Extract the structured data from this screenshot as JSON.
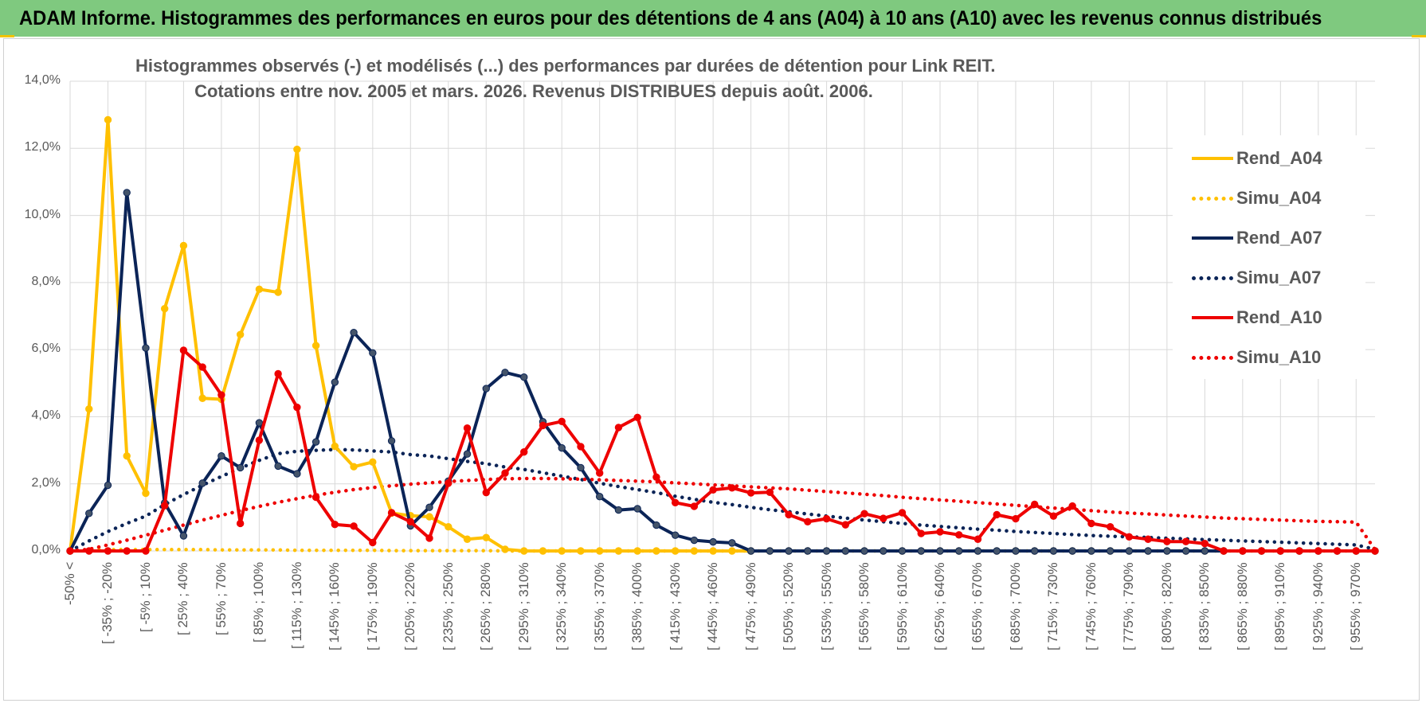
{
  "banner": {
    "title": "ADAM Informe. Histogrammes des performances en euros pour des détentions de 4 ans (A04) à 10 ans (A10) avec les revenus connus distribués"
  },
  "colors": {
    "banner_bg": "#7fc97f",
    "A04": "#ffc000",
    "A07": "#0b2457",
    "A10": "#ee0000",
    "grid": "#d9d9d9",
    "text": "#595959"
  },
  "chart_data": {
    "type": "line",
    "title_line1": "Histogrammes observés (-) et modélisés (...) des performances par durées de détention pour Link REIT.",
    "title_line2": "Cotations entre nov. 2005 et mars. 2026.  Revenus DISTRIBUES depuis août. 2006.",
    "ylim": [
      0,
      0.14
    ],
    "yticks": [
      "0,0%",
      "2,0%",
      "4,0%",
      "6,0%",
      "8,0%",
      "10,0%",
      "12,0%",
      "14,0%"
    ],
    "xtick_labels": [
      "-50% <",
      "[ -35% ; -20%",
      "[ -5% ; 10%",
      "[ 25% ; 40%",
      "[ 55% ; 70%",
      "[ 85% ; 100%",
      "[ 115% ; 130%",
      "[ 145% ; 160%",
      "[ 175% ; 190%",
      "[ 205% ; 220%",
      "[ 235% ; 250%",
      "[ 265% ; 280%",
      "[ 295% ; 310%",
      "[ 325% ; 340%",
      "[ 355% ; 370%",
      "[ 385% ; 400%",
      "[ 415% ; 430%",
      "[ 445% ; 460%",
      "[ 475% ; 490%",
      "[ 505% ; 520%",
      "[ 535% ; 550%",
      "[ 565% ; 580%",
      "[ 595% ; 610%",
      "[ 625% ; 640%",
      "[ 655% ; 670%",
      "[ 685% ; 700%",
      "[ 715% ; 730%",
      "[ 745% ; 760%",
      "[ 775% ; 790%",
      "[ 805% ; 820%",
      "[ 835% ; 850%",
      "[ 865% ; 880%",
      "[ 895% ; 910%",
      "[ 925% ; 940%",
      "[ 955% ; 970%"
    ],
    "n_points": 70,
    "series": [
      {
        "name": "Rend_A04",
        "key": "A04",
        "style": "solid",
        "values": [
          0,
          0.0423,
          0.1285,
          0.0283,
          0.0172,
          0.0722,
          0.091,
          0.0455,
          0.0452,
          0.0645,
          0.078,
          0.0771,
          0.1197,
          0.0612,
          0.0312,
          0.0251,
          0.0265,
          0.0113,
          0.0105,
          0.0102,
          0.0072,
          0.0035,
          0.004,
          0.0005,
          0,
          0,
          0,
          0,
          0,
          0,
          0,
          0,
          0,
          0,
          0,
          0,
          0,
          0,
          0,
          0,
          0,
          0,
          0,
          0,
          0,
          0,
          0,
          0,
          0,
          0,
          0,
          0,
          0,
          0,
          0,
          0,
          0,
          0,
          0,
          0,
          0,
          0,
          0,
          0,
          0,
          0,
          0,
          0,
          0,
          0
        ]
      },
      {
        "name": "Simu_A04",
        "key": "A04",
        "style": "dotted",
        "values": [
          0,
          0.0003,
          0.0004,
          0.0004,
          0.0004,
          0.0004,
          0.0004,
          0.0004,
          0.0003,
          0.0003,
          0.0003,
          0.0003,
          0.0002,
          0.0002,
          0.0002,
          0.0002,
          0.0002,
          0.0001,
          0.0001,
          0.0001,
          0.0001,
          0.0001,
          0.0001,
          0,
          0,
          0,
          0,
          0,
          0,
          0,
          0,
          0,
          0,
          0,
          0,
          0,
          0,
          0,
          0,
          0,
          0,
          0,
          0,
          0,
          0,
          0,
          0,
          0,
          0,
          0,
          0,
          0,
          0,
          0,
          0,
          0,
          0,
          0,
          0,
          0,
          0,
          0,
          0,
          0,
          0,
          0,
          0,
          0,
          0,
          0
        ]
      },
      {
        "name": "Rend_A07",
        "key": "A07",
        "style": "solid",
        "values": [
          0,
          0.0112,
          0.0196,
          0.1068,
          0.0605,
          0.0143,
          0.0045,
          0.0202,
          0.0283,
          0.0248,
          0.0382,
          0.0253,
          0.023,
          0.0325,
          0.0503,
          0.0651,
          0.059,
          0.0328,
          0.0075,
          0.013,
          0.0208,
          0.0289,
          0.0484,
          0.0532,
          0.0518,
          0.0385,
          0.0307,
          0.0248,
          0.0162,
          0.0122,
          0.0126,
          0.0077,
          0.0047,
          0.0032,
          0.0027,
          0.0024,
          0,
          0,
          0,
          0,
          0,
          0,
          0,
          0,
          0,
          0,
          0,
          0,
          0,
          0,
          0,
          0,
          0,
          0,
          0,
          0,
          0,
          0,
          0,
          0,
          0,
          0,
          0,
          0,
          0,
          0,
          0,
          0,
          0,
          0
        ]
      },
      {
        "name": "Simu_A07",
        "key": "A07",
        "style": "dotted",
        "values": [
          0,
          0.003,
          0.0058,
          0.0082,
          0.0104,
          0.0138,
          0.0168,
          0.0196,
          0.0222,
          0.0247,
          0.027,
          0.029,
          0.0297,
          0.03,
          0.0302,
          0.0301,
          0.0298,
          0.0295,
          0.0287,
          0.0283,
          0.0275,
          0.0267,
          0.026,
          0.025,
          0.0243,
          0.0233,
          0.0223,
          0.0213,
          0.0202,
          0.0192,
          0.0183,
          0.0174,
          0.0163,
          0.0154,
          0.0145,
          0.0138,
          0.013,
          0.0123,
          0.0117,
          0.011,
          0.0104,
          0.0098,
          0.0092,
          0.0087,
          0.0082,
          0.0077,
          0.0073,
          0.0069,
          0.0065,
          0.0062,
          0.0058,
          0.0055,
          0.0052,
          0.0049,
          0.0046,
          0.0044,
          0.0042,
          0.004,
          0.0038,
          0.0036,
          0.0034,
          0.0032,
          0.003,
          0.0028,
          0.0026,
          0.0024,
          0.0022,
          0.002,
          0.0018,
          0.0005
        ]
      },
      {
        "name": "Rend_A10",
        "key": "A10",
        "style": "solid",
        "values": [
          0,
          0,
          0,
          0,
          0,
          0.0135,
          0.0598,
          0.0548,
          0.0465,
          0.0082,
          0.033,
          0.0528,
          0.0428,
          0.016,
          0.0079,
          0.0074,
          0.0025,
          0.0114,
          0.0087,
          0.0038,
          0.0202,
          0.0366,
          0.0174,
          0.0232,
          0.0295,
          0.0374,
          0.0386,
          0.0311,
          0.0232,
          0.0368,
          0.0398,
          0.022,
          0.0144,
          0.0133,
          0.0182,
          0.0188,
          0.0173,
          0.0175,
          0.0108,
          0.0087,
          0.0096,
          0.0078,
          0.0111,
          0.0097,
          0.0114,
          0.0052,
          0.0057,
          0.0048,
          0.0035,
          0.0108,
          0.0096,
          0.0139,
          0.0104,
          0.0134,
          0.0082,
          0.0072,
          0.0042,
          0.0035,
          0.0028,
          0.0028,
          0.0022,
          0,
          0,
          0,
          0,
          0,
          0,
          0,
          0,
          0
        ]
      },
      {
        "name": "Simu_A10",
        "key": "A10",
        "style": "dotted",
        "values": [
          0,
          0.0005,
          0.0018,
          0.0032,
          0.0047,
          0.0062,
          0.0077,
          0.0092,
          0.0106,
          0.012,
          0.0133,
          0.0145,
          0.0156,
          0.0166,
          0.0175,
          0.0183,
          0.0189,
          0.0194,
          0.0199,
          0.0203,
          0.0207,
          0.021,
          0.0213,
          0.0215,
          0.0216,
          0.0216,
          0.0215,
          0.0214,
          0.0212,
          0.021,
          0.0208,
          0.0206,
          0.0203,
          0.02,
          0.0197,
          0.0194,
          0.0191,
          0.0188,
          0.0185,
          0.0181,
          0.0177,
          0.0173,
          0.0169,
          0.0165,
          0.016,
          0.0156,
          0.0152,
          0.0148,
          0.0144,
          0.014,
          0.0136,
          0.0132,
          0.0128,
          0.0124,
          0.012,
          0.0116,
          0.0113,
          0.011,
          0.0107,
          0.0104,
          0.0101,
          0.0098,
          0.0096,
          0.0094,
          0.0092,
          0.009,
          0.0088,
          0.0087,
          0.0086,
          0.0004
        ]
      }
    ],
    "legend": [
      "Rend_A04",
      "Simu_A04",
      "Rend_A07",
      "Simu_A07",
      "Rend_A10",
      "Simu_A10"
    ],
    "legend_position": "right"
  }
}
